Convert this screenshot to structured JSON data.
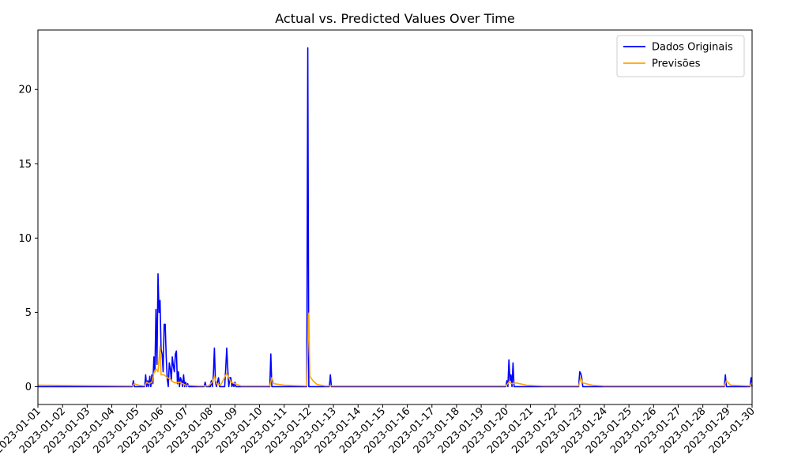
{
  "chart_data": {
    "type": "line",
    "title": "Actual vs. Predicted Values Over Time",
    "xlabel": "",
    "ylabel": "",
    "x_range": [
      "2023-01-01",
      "2023-01-30"
    ],
    "ylim": [
      -1.2,
      24
    ],
    "grid": false,
    "legend_position": "top-right",
    "x_ticks": [
      "2023-01-01",
      "2023-01-02",
      "2023-01-03",
      "2023-01-04",
      "2023-01-05",
      "2023-01-06",
      "2023-01-07",
      "2023-01-08",
      "2023-01-09",
      "2023-01-10",
      "2023-01-11",
      "2023-01-12",
      "2023-01-13",
      "2023-01-14",
      "2023-01-15",
      "2023-01-16",
      "2023-01-17",
      "2023-01-18",
      "2023-01-19",
      "2023-01-20",
      "2023-01-21",
      "2023-01-22",
      "2023-01-23",
      "2023-01-24",
      "2023-01-25",
      "2023-01-26",
      "2023-01-27",
      "2023-01-28",
      "2023-01-29",
      "2023-01-30"
    ],
    "y_ticks": [
      0,
      5,
      10,
      15,
      20
    ],
    "series": [
      {
        "name": "Dados Originais",
        "color": "#0000ff",
        "points": [
          [
            "2023-01-01T00:00",
            0
          ],
          [
            "2023-01-04T20:00",
            0
          ],
          [
            "2023-01-04T21:00",
            0.4
          ],
          [
            "2023-01-04T22:00",
            0
          ],
          [
            "2023-01-05T08:00",
            0
          ],
          [
            "2023-01-05T09:00",
            0.8
          ],
          [
            "2023-01-05T10:00",
            0
          ],
          [
            "2023-01-05T11:00",
            0.4
          ],
          [
            "2023-01-05T12:00",
            0
          ],
          [
            "2023-01-05T13:00",
            0.7
          ],
          [
            "2023-01-05T14:00",
            0
          ],
          [
            "2023-01-05T15:00",
            0.8
          ],
          [
            "2023-01-05T16:00",
            0.2
          ],
          [
            "2023-01-05T17:00",
            2.0
          ],
          [
            "2023-01-05T18:00",
            1.0
          ],
          [
            "2023-01-05T19:00",
            5.2
          ],
          [
            "2023-01-05T20:00",
            1.5
          ],
          [
            "2023-01-05T21:00",
            7.6
          ],
          [
            "2023-01-05T22:00",
            5.0
          ],
          [
            "2023-01-05T23:00",
            5.8
          ],
          [
            "2023-01-06T00:00",
            2.5
          ],
          [
            "2023-01-06T01:00",
            2.2
          ],
          [
            "2023-01-06T02:00",
            1.0
          ],
          [
            "2023-01-06T03:00",
            4.2
          ],
          [
            "2023-01-06T04:00",
            4.2
          ],
          [
            "2023-01-06T05:00",
            2.0
          ],
          [
            "2023-01-06T06:00",
            0.5
          ],
          [
            "2023-01-06T07:00",
            0
          ],
          [
            "2023-01-06T08:00",
            1.6
          ],
          [
            "2023-01-06T09:00",
            1.2
          ],
          [
            "2023-01-06T10:00",
            0.4
          ],
          [
            "2023-01-06T11:00",
            2.0
          ],
          [
            "2023-01-06T12:00",
            1.4
          ],
          [
            "2023-01-06T13:00",
            1.0
          ],
          [
            "2023-01-06T14:00",
            2.2
          ],
          [
            "2023-01-06T15:00",
            2.4
          ],
          [
            "2023-01-06T16:00",
            0.2
          ],
          [
            "2023-01-06T17:00",
            1.0
          ],
          [
            "2023-01-06T18:00",
            0
          ],
          [
            "2023-01-06T19:00",
            0.6
          ],
          [
            "2023-01-06T20:00",
            0.4
          ],
          [
            "2023-01-06T21:00",
            0
          ],
          [
            "2023-01-06T22:00",
            0.8
          ],
          [
            "2023-01-06T23:00",
            0
          ],
          [
            "2023-01-07T00:00",
            0.3
          ],
          [
            "2023-01-07T01:00",
            0
          ],
          [
            "2023-01-07T02:00",
            0.2
          ],
          [
            "2023-01-07T03:00",
            0
          ],
          [
            "2023-01-07T18:00",
            0
          ],
          [
            "2023-01-07T19:00",
            0.3
          ],
          [
            "2023-01-07T20:00",
            0
          ],
          [
            "2023-01-08T00:00",
            0
          ],
          [
            "2023-01-08T01:00",
            0.4
          ],
          [
            "2023-01-08T02:00",
            0
          ],
          [
            "2023-01-08T03:00",
            0.8
          ],
          [
            "2023-01-08T04:00",
            2.6
          ],
          [
            "2023-01-08T05:00",
            0.3
          ],
          [
            "2023-01-08T06:00",
            0
          ],
          [
            "2023-01-08T08:00",
            0.6
          ],
          [
            "2023-01-08T09:00",
            0
          ],
          [
            "2023-01-08T14:00",
            0
          ],
          [
            "2023-01-08T15:00",
            1.2
          ],
          [
            "2023-01-08T16:00",
            2.6
          ],
          [
            "2023-01-08T17:00",
            1.2
          ],
          [
            "2023-01-08T18:00",
            0
          ],
          [
            "2023-01-08T19:00",
            0.6
          ],
          [
            "2023-01-08T20:00",
            0.6
          ],
          [
            "2023-01-08T21:00",
            0
          ],
          [
            "2023-01-08T22:00",
            0.2
          ],
          [
            "2023-01-08T23:00",
            0
          ],
          [
            "2023-01-09T00:00",
            0.3
          ],
          [
            "2023-01-09T01:00",
            0
          ],
          [
            "2023-01-10T10:00",
            0
          ],
          [
            "2023-01-10T11:00",
            2.2
          ],
          [
            "2023-01-10T12:00",
            0
          ],
          [
            "2023-01-11T22:00",
            0
          ],
          [
            "2023-01-11T23:00",
            22.8
          ],
          [
            "2023-01-12T00:00",
            0
          ],
          [
            "2023-01-12T20:00",
            0
          ],
          [
            "2023-01-12T21:00",
            0.8
          ],
          [
            "2023-01-12T22:00",
            0
          ],
          [
            "2023-01-20T00:00",
            0
          ],
          [
            "2023-01-20T01:00",
            0.4
          ],
          [
            "2023-01-20T02:00",
            0
          ],
          [
            "2023-01-20T03:00",
            1.8
          ],
          [
            "2023-01-20T04:00",
            0.4
          ],
          [
            "2023-01-20T05:00",
            0.8
          ],
          [
            "2023-01-20T06:00",
            0
          ],
          [
            "2023-01-20T07:00",
            1.6
          ],
          [
            "2023-01-20T08:00",
            0
          ],
          [
            "2023-01-22T23:00",
            0
          ],
          [
            "2023-01-23T00:00",
            1.0
          ],
          [
            "2023-01-23T01:00",
            0.9
          ],
          [
            "2023-01-23T02:00",
            0.6
          ],
          [
            "2023-01-23T03:00",
            0
          ],
          [
            "2023-01-28T21:00",
            0
          ],
          [
            "2023-01-28T22:00",
            0.8
          ],
          [
            "2023-01-28T23:00",
            0
          ],
          [
            "2023-01-29T22:00",
            0
          ],
          [
            "2023-01-29T23:00",
            0.6
          ],
          [
            "2023-01-30T00:00",
            0
          ]
        ]
      },
      {
        "name": "Previsões",
        "color": "#ffa500",
        "points": [
          [
            "2023-01-01T00:00",
            0.1
          ],
          [
            "2023-01-04T20:00",
            0.05
          ],
          [
            "2023-01-04T22:00",
            0.2
          ],
          [
            "2023-01-05T02:00",
            0.1
          ],
          [
            "2023-01-05T08:00",
            0.05
          ],
          [
            "2023-01-05T10:00",
            0.3
          ],
          [
            "2023-01-05T12:00",
            0.2
          ],
          [
            "2023-01-05T15:00",
            0.3
          ],
          [
            "2023-01-05T17:00",
            0.9
          ],
          [
            "2023-01-05T19:00",
            1.2
          ],
          [
            "2023-01-05T21:00",
            1.0
          ],
          [
            "2023-01-05T23:00",
            2.7
          ],
          [
            "2023-01-06T00:00",
            0.8
          ],
          [
            "2023-01-06T03:00",
            0.8
          ],
          [
            "2023-01-06T06:00",
            0.6
          ],
          [
            "2023-01-06T09:00",
            0.5
          ],
          [
            "2023-01-06T12:00",
            0.3
          ],
          [
            "2023-01-06T15:00",
            0.25
          ],
          [
            "2023-01-06T18:00",
            0.3
          ],
          [
            "2023-01-06T21:00",
            0.2
          ],
          [
            "2023-01-07T00:00",
            0.1
          ],
          [
            "2023-01-07T12:00",
            0.05
          ],
          [
            "2023-01-07T22:00",
            0.05
          ],
          [
            "2023-01-08T02:00",
            0.3
          ],
          [
            "2023-01-08T04:00",
            0.7
          ],
          [
            "2023-01-08T06:00",
            0.2
          ],
          [
            "2023-01-08T10:00",
            0.1
          ],
          [
            "2023-01-08T16:00",
            0.9
          ],
          [
            "2023-01-08T18:00",
            0.6
          ],
          [
            "2023-01-08T20:00",
            0.3
          ],
          [
            "2023-01-09T00:00",
            0.2
          ],
          [
            "2023-01-09T06:00",
            0.05
          ],
          [
            "2023-01-10T10:00",
            0.05
          ],
          [
            "2023-01-10T12:00",
            0.6
          ],
          [
            "2023-01-10T14:00",
            0.2
          ],
          [
            "2023-01-11T00:00",
            0.1
          ],
          [
            "2023-01-11T22:00",
            0.05
          ],
          [
            "2023-01-11T23:30",
            3.8
          ],
          [
            "2023-01-12T00:00",
            4.95
          ],
          [
            "2023-01-12T01:00",
            0.7
          ],
          [
            "2023-01-12T04:00",
            0.4
          ],
          [
            "2023-01-12T08:00",
            0.15
          ],
          [
            "2023-01-12T16:00",
            0.05
          ],
          [
            "2023-01-13T00:00",
            0.05
          ],
          [
            "2023-01-20T00:00",
            0.05
          ],
          [
            "2023-01-20T03:00",
            0.3
          ],
          [
            "2023-01-20T06:00",
            0.2
          ],
          [
            "2023-01-20T10:00",
            0.25
          ],
          [
            "2023-01-20T20:00",
            0.1
          ],
          [
            "2023-01-21T12:00",
            0.05
          ],
          [
            "2023-01-22T23:00",
            0.05
          ],
          [
            "2023-01-23T01:00",
            0.6
          ],
          [
            "2023-01-23T03:00",
            0.25
          ],
          [
            "2023-01-23T12:00",
            0.1
          ],
          [
            "2023-01-24T00:00",
            0.05
          ],
          [
            "2023-01-28T21:00",
            0.05
          ],
          [
            "2023-01-28T23:00",
            0.4
          ],
          [
            "2023-01-29T03:00",
            0.1
          ],
          [
            "2023-01-29T22:00",
            0.05
          ],
          [
            "2023-01-30T00:00",
            0.3
          ]
        ]
      }
    ]
  }
}
